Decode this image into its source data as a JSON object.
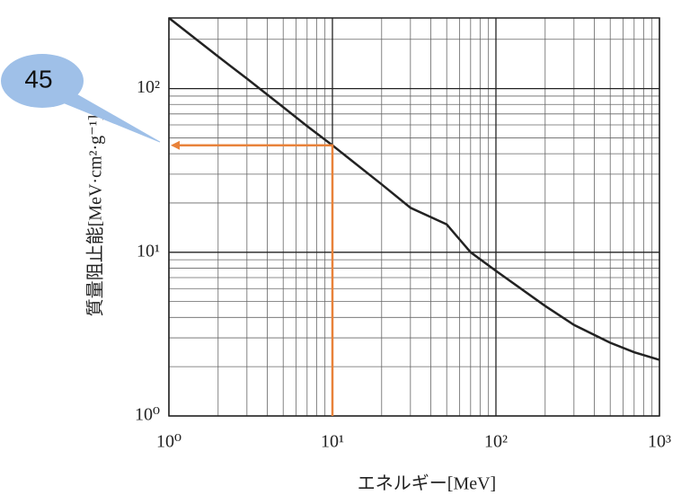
{
  "chart_data": {
    "type": "line",
    "x_label": "エネルギー[MeV]",
    "y_label": "質量阻止能[MeV·cm²·g⁻¹]",
    "log_x": true,
    "log_y": true,
    "grid": true,
    "xlim": [
      1,
      1000
    ],
    "ylim": [
      1,
      270
    ],
    "xticks": [
      {
        "value": 1,
        "label": "10⁰"
      },
      {
        "value": 10,
        "label": "10¹"
      },
      {
        "value": 100,
        "label": "10²"
      },
      {
        "value": 1000,
        "label": "10³"
      }
    ],
    "yticks": [
      {
        "value": 1,
        "label": "10⁰"
      },
      {
        "value": 10,
        "label": "10¹"
      },
      {
        "value": 100,
        "label": "10²"
      }
    ],
    "xminorticks": [
      2,
      3,
      4,
      5,
      6,
      7,
      8,
      9,
      20,
      30,
      40,
      50,
      60,
      70,
      80,
      90,
      200,
      300,
      400,
      500,
      600,
      700,
      800,
      900
    ],
    "yminorticks": [
      2,
      3,
      4,
      5,
      6,
      7,
      8,
      9,
      20,
      30,
      40,
      50,
      60,
      70,
      80,
      90,
      200
    ],
    "x": [
      1,
      2,
      3,
      5,
      7,
      10,
      20,
      30,
      50,
      70,
      100,
      200,
      300,
      500,
      700,
      1000
    ],
    "series": [
      {
        "name": "質量阻止能",
        "color": "#222222",
        "values": [
          270,
          157,
          115,
          77,
          59,
          45,
          26,
          18.7,
          14.8,
          10,
          7.7,
          4.7,
          3.6,
          2.8,
          2.45,
          2.2
        ]
      }
    ],
    "annotation": {
      "x": 10,
      "y": 45,
      "label": "45",
      "color": "#e8823a"
    }
  }
}
